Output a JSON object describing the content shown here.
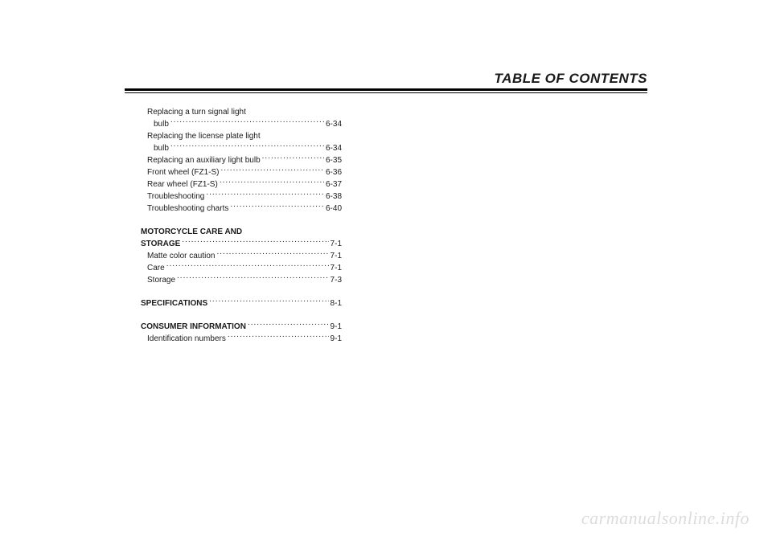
{
  "header": {
    "title": "TABLE OF CONTENTS"
  },
  "toc": {
    "group1": [
      {
        "label": "Replacing a turn signal light",
        "cont": "bulb",
        "page": "6-34"
      },
      {
        "label": "Replacing the license plate light",
        "cont": "bulb",
        "page": "6-34"
      },
      {
        "label": "Replacing an auxiliary light bulb",
        "page": "6-35"
      },
      {
        "label": "Front wheel (FZ1-S)",
        "page": "6-36"
      },
      {
        "label": "Rear wheel (FZ1-S)",
        "page": "6-37"
      },
      {
        "label": "Troubleshooting",
        "page": "6-38"
      },
      {
        "label": "Troubleshooting charts",
        "page": "6-40"
      }
    ],
    "section_motorcycle": {
      "title1": "MOTORCYCLE CARE AND",
      "title2": "STORAGE",
      "page": "7-1",
      "items": [
        {
          "label": "Matte color caution",
          "page": "7-1"
        },
        {
          "label": "Care",
          "page": "7-1"
        },
        {
          "label": "Storage",
          "page": "7-3"
        }
      ]
    },
    "section_specs": {
      "title": "SPECIFICATIONS",
      "page": "8-1"
    },
    "section_consumer": {
      "title": "CONSUMER INFORMATION",
      "page": "9-1",
      "items": [
        {
          "label": "Identification numbers",
          "page": "9-1"
        }
      ]
    }
  },
  "watermark": "carmanualsonline.info"
}
